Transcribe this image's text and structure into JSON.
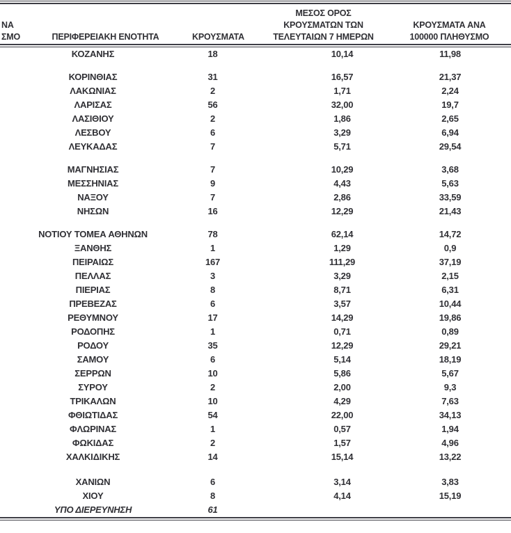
{
  "table": {
    "header": {
      "clipped_lines": [
        "ΝΑ",
        "ΣΜΟ"
      ],
      "region": "ΠΕΡΙΦΕΡΕΙΑΚΗ ΕΝΟΤΗΤΑ",
      "cases": "ΚΡΟΥΣΜΑΤΑ",
      "avg7_lines": [
        "ΜΕΣΟΣ ΟΡΟΣ",
        "ΚΡΟΥΣΜΑΤΩΝ ΤΩΝ",
        "ΤΕΛΕΥΤΑΙΩΝ 7 ΗΜΕΡΩΝ"
      ],
      "per100k_lines": [
        "ΚΡΟΥΣΜΑΤΑ ΑΝΑ",
        "100000 ΠΛΗΘΥΣΜΟ"
      ]
    },
    "colors": {
      "text": "#303035",
      "rule": "#3e3e45",
      "background": "#ffffff"
    },
    "groups": [
      {
        "rows": [
          {
            "region": "ΚΟΖΑΝΗΣ",
            "cases": "18",
            "avg7": "10,14",
            "per100k": "11,98"
          }
        ]
      },
      {
        "rows": [
          {
            "region": "ΚΟΡΙΝΘΙΑΣ",
            "cases": "31",
            "avg7": "16,57",
            "per100k": "21,37"
          },
          {
            "region": "ΛΑΚΩΝΙΑΣ",
            "cases": "2",
            "avg7": "1,71",
            "per100k": "2,24"
          },
          {
            "region": "ΛΑΡΙΣΑΣ",
            "cases": "56",
            "avg7": "32,00",
            "per100k": "19,7"
          },
          {
            "region": "ΛΑΣΙΘΙΟΥ",
            "cases": "2",
            "avg7": "1,86",
            "per100k": "2,65"
          },
          {
            "region": "ΛΕΣΒΟΥ",
            "cases": "6",
            "avg7": "3,29",
            "per100k": "6,94"
          },
          {
            "region": "ΛΕΥΚΑΔΑΣ",
            "cases": "7",
            "avg7": "5,71",
            "per100k": "29,54"
          }
        ]
      },
      {
        "rows": [
          {
            "region": "ΜΑΓΝΗΣΙΑΣ",
            "cases": "7",
            "avg7": "10,29",
            "per100k": "3,68"
          },
          {
            "region": "ΜΕΣΣΗΝΙΑΣ",
            "cases": "9",
            "avg7": "4,43",
            "per100k": "5,63"
          },
          {
            "region": "ΝΑΞΟΥ",
            "cases": "7",
            "avg7": "2,86",
            "per100k": "33,59"
          },
          {
            "region": "ΝΗΣΩΝ",
            "cases": "16",
            "avg7": "12,29",
            "per100k": "21,43"
          }
        ]
      },
      {
        "rows": [
          {
            "region": "ΝΟΤΙΟΥ ΤΟΜΕΑ ΑΘΗΝΩΝ",
            "cases": "78",
            "avg7": "62,14",
            "per100k": "14,72"
          },
          {
            "region": "ΞΑΝΘΗΣ",
            "cases": "1",
            "avg7": "1,29",
            "per100k": "0,9"
          },
          {
            "region": "ΠΕΙΡΑΙΩΣ",
            "cases": "167",
            "avg7": "111,29",
            "per100k": "37,19"
          },
          {
            "region": "ΠΕΛΛΑΣ",
            "cases": "3",
            "avg7": "3,29",
            "per100k": "2,15"
          },
          {
            "region": "ΠΙΕΡΙΑΣ",
            "cases": "8",
            "avg7": "8,71",
            "per100k": "6,31"
          },
          {
            "region": "ΠΡΕΒΕΖΑΣ",
            "cases": "6",
            "avg7": "3,57",
            "per100k": "10,44"
          },
          {
            "region": "ΡΕΘΥΜΝΟΥ",
            "cases": "17",
            "avg7": "14,29",
            "per100k": "19,86"
          },
          {
            "region": "ΡΟΔΟΠΗΣ",
            "cases": "1",
            "avg7": "0,71",
            "per100k": "0,89"
          },
          {
            "region": "ΡΟΔΟΥ",
            "cases": "35",
            "avg7": "12,29",
            "per100k": "29,21"
          },
          {
            "region": "ΣΑΜΟΥ",
            "cases": "6",
            "avg7": "5,14",
            "per100k": "18,19"
          },
          {
            "region": "ΣΕΡΡΩΝ",
            "cases": "10",
            "avg7": "5,86",
            "per100k": "5,67"
          },
          {
            "region": "ΣΥΡΟΥ",
            "cases": "2",
            "avg7": "2,00",
            "per100k": "9,3"
          },
          {
            "region": "ΤΡΙΚΑΛΩΝ",
            "cases": "10",
            "avg7": "4,29",
            "per100k": "7,63"
          },
          {
            "region": "ΦΘΙΩΤΙΔΑΣ",
            "cases": "54",
            "avg7": "22,00",
            "per100k": "34,13"
          },
          {
            "region": "ΦΛΩΡΙΝΑΣ",
            "cases": "1",
            "avg7": "0,57",
            "per100k": "1,94"
          },
          {
            "region": "ΦΩΚΙΔΑΣ",
            "cases": "2",
            "avg7": "1,57",
            "per100k": "4,96"
          },
          {
            "region": "ΧΑΛΚΙΔΙΚΗΣ",
            "cases": "14",
            "avg7": "15,14",
            "per100k": "13,22"
          }
        ]
      },
      {
        "rows": [
          {
            "region": "ΧΑΝΙΩΝ",
            "cases": "6",
            "avg7": "3,14",
            "per100k": "3,83"
          },
          {
            "region": "ΧΙΟΥ",
            "cases": "8",
            "avg7": "4,14",
            "per100k": "15,19"
          },
          {
            "region": "ΥΠΟ ΔΙΕΡΕΥΝΗΣΗ",
            "cases": "61",
            "avg7": "",
            "per100k": "",
            "italic": true
          }
        ]
      }
    ]
  }
}
